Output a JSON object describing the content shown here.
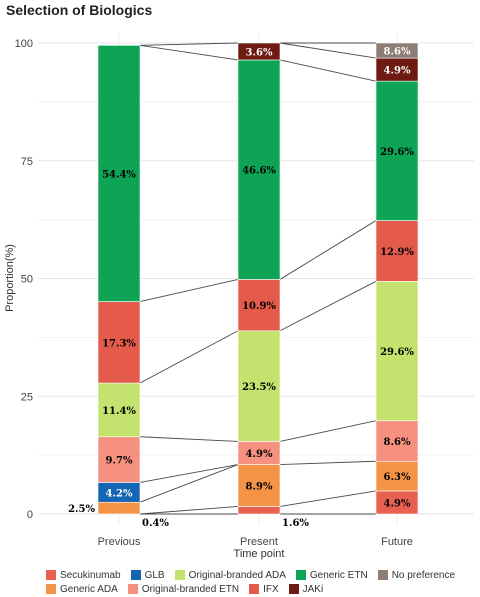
{
  "chart_data": {
    "type": "bar",
    "title": "Selection of Biologics",
    "xlabel": "Time point",
    "ylabel": "Proportion(%)",
    "ylim": [
      0,
      100
    ],
    "yticks": [
      0,
      25,
      50,
      75,
      100
    ],
    "categories": [
      "Previous",
      "Present",
      "Future"
    ],
    "stacked": true,
    "grid": true,
    "legend_position": "bottom",
    "series": [
      {
        "name": "Secukinumab",
        "color": "#e8604f",
        "values": [
          0,
          1.6,
          4.9
        ],
        "labels": [
          "",
          "1.6%",
          "4.9%"
        ]
      },
      {
        "name": "Generic ADA",
        "color": "#f59447",
        "values": [
          2.5,
          8.9,
          6.3
        ],
        "labels": [
          "2.5%",
          "8.9%",
          "6.3%"
        ]
      },
      {
        "name": "GLB",
        "color": "#1465b4",
        "values": [
          4.2,
          0,
          0
        ],
        "labels": [
          "4.2%",
          "",
          ""
        ]
      },
      {
        "name": "Original-branded ETN",
        "color": "#f6907f",
        "values": [
          9.7,
          4.9,
          8.6
        ],
        "labels": [
          "9.7%",
          "4.9%",
          "8.6%"
        ]
      },
      {
        "name": "Original-branded ADA",
        "color": "#c3e36e",
        "values": [
          11.4,
          23.5,
          29.6
        ],
        "labels": [
          "11.4%",
          "23.5%",
          "29.6%"
        ]
      },
      {
        "name": "IFX",
        "color": "#e45a4b",
        "values": [
          17.3,
          10.9,
          12.9
        ],
        "labels": [
          "17.3%",
          "10.9%",
          "12.9%"
        ]
      },
      {
        "name": "Generic ETN",
        "color": "#0da456",
        "values": [
          54.4,
          46.6,
          29.6
        ],
        "labels": [
          "54.4%",
          "46.6%",
          "29.6%"
        ]
      },
      {
        "name": "JAKi",
        "color": "#6e1b14",
        "values": [
          0,
          3.6,
          4.9
        ],
        "labels": [
          "",
          "3.6%",
          "4.9%"
        ]
      },
      {
        "name": "No preference",
        "color": "#8d7d74",
        "values": [
          0,
          0,
          8.6
        ],
        "labels": [
          "",
          "",
          "8.6%"
        ]
      }
    ],
    "annotations": [
      {
        "text": "0.4%",
        "category": "Previous"
      }
    ]
  },
  "legend_rows": [
    [
      "Secukinumab",
      "GLB",
      "Original-branded ADA",
      "Generic ETN",
      "No preference"
    ],
    [
      "Generic ADA",
      "Original-branded ETN",
      "IFX",
      "JAKi"
    ]
  ]
}
